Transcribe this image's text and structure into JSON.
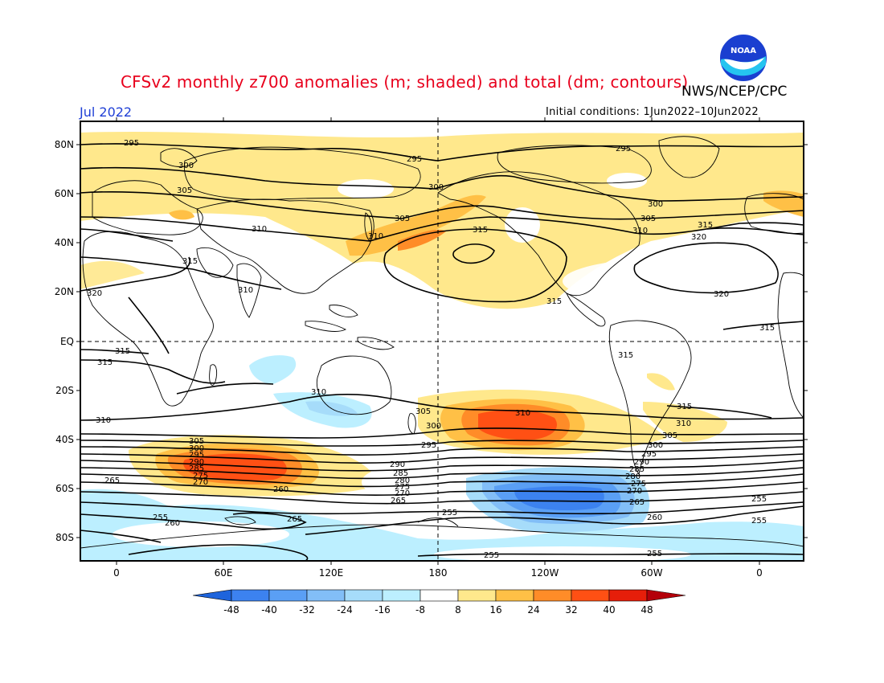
{
  "header": {
    "title": "CFSv2 monthly z700 anomalies (m; shaded) and total (dm; contours)",
    "agency": "NWS/NCEP/CPC",
    "month": "Jul 2022",
    "initial_conditions": "Initial conditions: 1Jun2022–10Jun2022",
    "logo_text": "NOAA"
  },
  "axes": {
    "lat_labels": [
      "80N",
      "60N",
      "40N",
      "20N",
      "EQ",
      "20S",
      "40S",
      "60S",
      "80S"
    ],
    "lon_labels": [
      "0",
      "60E",
      "120E",
      "180",
      "120W",
      "60W",
      "0"
    ]
  },
  "contour_labels": [
    "295",
    "300",
    "305",
    "310",
    "315",
    "320",
    "310",
    "305",
    "300",
    "295",
    "290",
    "285",
    "280",
    "275",
    "270",
    "265",
    "260",
    "255"
  ],
  "colorbar": {
    "ticks": [
      "-48",
      "-40",
      "-32",
      "-24",
      "-16",
      "-8",
      "8",
      "16",
      "24",
      "32",
      "40",
      "48"
    ],
    "colors": [
      "#1e64dc",
      "#3c82f0",
      "#5a9ff5",
      "#82bef7",
      "#a6dcfa",
      "#bcefff",
      "#ffffff",
      "#ffe88c",
      "#ffc046",
      "#ff8c28",
      "#ff5014",
      "#e61e0a",
      "#b4000a"
    ]
  },
  "colors": {
    "title": "#e8001c",
    "month": "#1f3fd6",
    "contour": "#000000",
    "coast": "#000000"
  }
}
